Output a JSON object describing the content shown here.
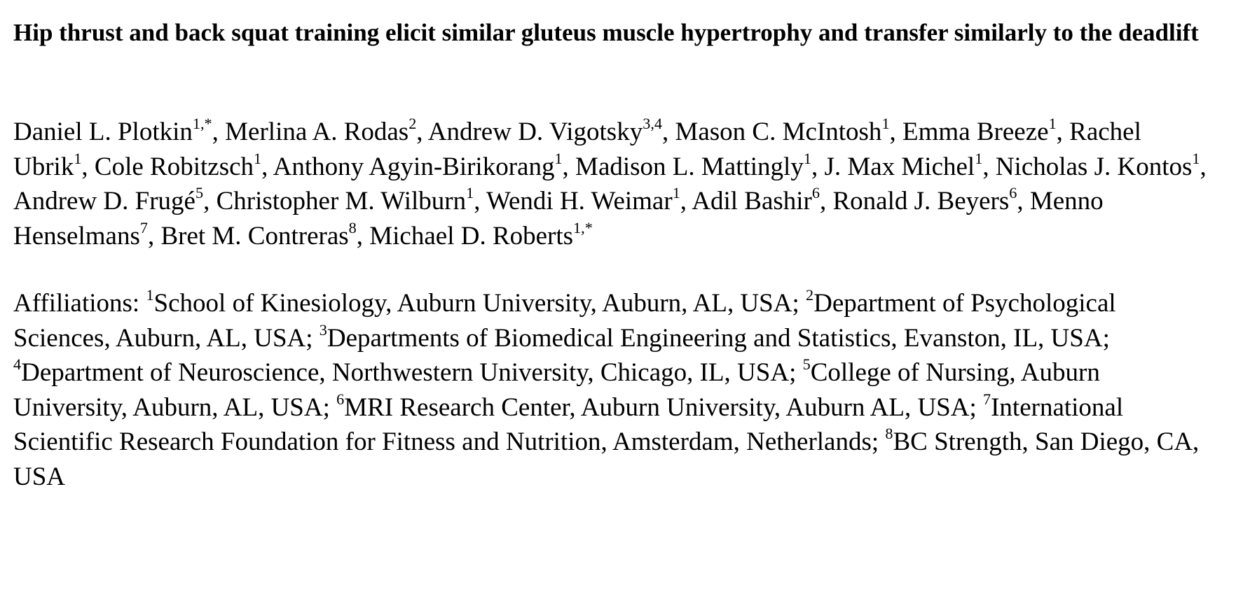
{
  "paper": {
    "title": "Hip thrust and back squat training elicit similar gluteus muscle hypertrophy and transfer similarly to the deadlift",
    "authors": [
      {
        "name": "Daniel L. Plotkin",
        "sup": "1,*",
        "sep": ", "
      },
      {
        "name": "Merlina A. Rodas",
        "sup": "2",
        "sep": ", "
      },
      {
        "name": "Andrew D. Vigotsky",
        "sup": "3,4",
        "sep": ", "
      },
      {
        "name": "Mason C. McIntosh",
        "sup": "1",
        "sep": ", "
      },
      {
        "name": "Emma Breeze",
        "sup": "1",
        "sep": ", "
      },
      {
        "name": "Rachel Ubrik",
        "sup": "1",
        "sep": ", "
      },
      {
        "name": "Cole Robitzsch",
        "sup": "1",
        "sep": ", "
      },
      {
        "name": "Anthony Agyin-Birikorang",
        "sup": "1",
        "sep": ", "
      },
      {
        "name": "Madison L. Mattingly",
        "sup": "1",
        "sep": ", "
      },
      {
        "name": "J. Max Michel",
        "sup": "1",
        "sep": ", "
      },
      {
        "name": "Nicholas J. Kontos",
        "sup": "1",
        "sep": ", "
      },
      {
        "name": "Andrew D. Frugé",
        "sup": "5",
        "sep": ", "
      },
      {
        "name": "Christopher M. Wilburn",
        "sup": "1",
        "sep": ", "
      },
      {
        "name": "Wendi H. Weimar",
        "sup": "1",
        "sep": ", "
      },
      {
        "name": "Adil Bashir",
        "sup": "6",
        "sep": ", "
      },
      {
        "name": "Ronald J. Beyers",
        "sup": "6",
        "sep": ", "
      },
      {
        "name": "Menno Henselmans",
        "sup": "7",
        "sep": ", "
      },
      {
        "name": "Bret M. Contreras",
        "sup": "8",
        "sep": ", "
      },
      {
        "name": "Michael D. Roberts",
        "sup": "1,*",
        "sep": ""
      }
    ],
    "affiliations_label": "Affiliations: ",
    "affiliations": [
      {
        "sup": "1",
        "text": "School of Kinesiology, Auburn University, Auburn, AL, USA",
        "sep": "; "
      },
      {
        "sup": "2",
        "text": "Department of Psychological Sciences, Auburn, AL, USA",
        "sep": "; "
      },
      {
        "sup": "3",
        "text": "Departments of Biomedical Engineering and Statistics, Evanston, IL, USA",
        "sep": "; "
      },
      {
        "sup": "4",
        "text": "Department of Neuroscience, Northwestern University, Chicago, IL, USA",
        "sep": "; "
      },
      {
        "sup": "5",
        "text": "College of Nursing, Auburn University, Auburn, AL, USA",
        "sep": "; "
      },
      {
        "sup": "6",
        "text": "MRI Research Center, Auburn University, Auburn AL, USA",
        "sep": "; "
      },
      {
        "sup": "7",
        "text": "International Scientific Research Foundation for Fitness and Nutrition, Amsterdam, Netherlands",
        "sep": "; "
      },
      {
        "sup": "8",
        "text": "BC Strength, San Diego, CA, USA",
        "sep": ""
      }
    ]
  }
}
